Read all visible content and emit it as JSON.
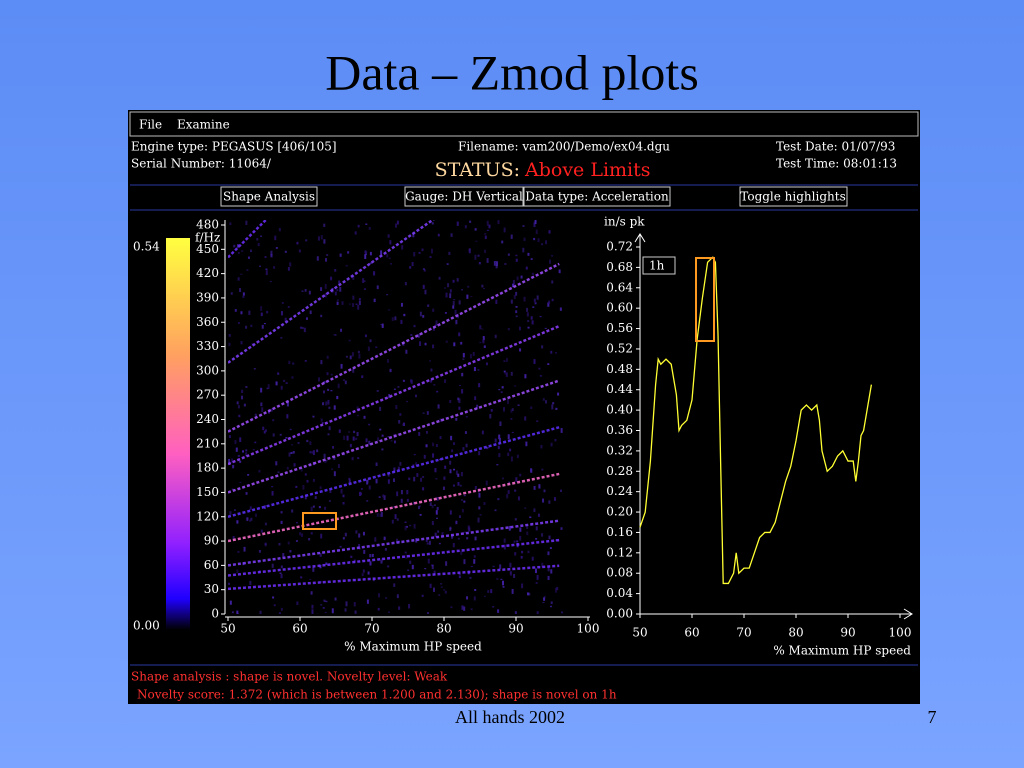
{
  "slide": {
    "title": "Data – Zmod plots",
    "footer": "All hands 2002",
    "page_number": "7"
  },
  "app": {
    "menu": [
      "File",
      "Examine"
    ],
    "header": {
      "engine_type": "Engine type: PEGASUS [406/105]",
      "serial_number": "Serial Number: 11064/",
      "filename": "Filename: vam200/Demo/ex04.dgu",
      "status_label": "STATUS:",
      "status": "Above Limits",
      "test_date": "Test Date: 01/07/93",
      "test_time": "Test Time: 08:01:13"
    },
    "buttons": [
      "Shape Analysis",
      "Gauge: DH Vertical",
      "Data type: Acceleration",
      "Toggle highlights"
    ],
    "zmod": {
      "ylabel": "f/Hz",
      "xlabel": "% Maximum HP speed",
      "xlim": [
        50,
        100
      ],
      "xticks": [
        50,
        60,
        70,
        80,
        90,
        100
      ],
      "ylim": [
        0,
        480
      ],
      "yticks": [
        0,
        30,
        60,
        90,
        120,
        150,
        180,
        210,
        240,
        270,
        300,
        330,
        360,
        390,
        420,
        450,
        480
      ],
      "colorbar_max": "0.54",
      "colorbar_min": "0.00"
    },
    "spectrum": {
      "type": "line",
      "ylabel": "in/s pk",
      "xlabel": "% Maximum HP speed",
      "legend": "1h",
      "color": "#ffff33",
      "xlim": [
        50,
        100
      ],
      "xticks": [
        50,
        60,
        70,
        80,
        90,
        100
      ],
      "ylim": [
        0,
        0.72
      ],
      "yticks": [
        {
          "value": 0,
          "label": "0.00"
        },
        0.04,
        0.08,
        0.12,
        0.16,
        {
          "value": 0.2,
          "label": "0.20"
        },
        0.24,
        0.28,
        0.32,
        0.36,
        {
          "value": 0.4,
          "label": "0.40"
        },
        0.44,
        0.48,
        0.52,
        0.56,
        {
          "value": 0.6,
          "label": "0.60"
        },
        0.64,
        0.68,
        0.72
      ],
      "x": [
        50,
        51,
        52,
        53,
        53.5,
        54,
        55,
        56,
        57,
        57.5,
        58,
        59,
        60,
        61,
        62,
        63,
        64,
        64.5,
        65,
        65.5,
        66,
        67,
        68,
        68.5,
        69,
        70,
        71,
        72,
        73,
        74,
        75,
        76,
        77,
        78,
        79,
        80,
        81,
        82,
        83,
        84,
        84.5,
        85,
        86,
        87,
        88,
        89,
        90,
        91,
        91.5,
        92,
        92.5,
        93,
        94,
        94.5
      ],
      "values": [
        0.17,
        0.2,
        0.3,
        0.45,
        0.5,
        0.49,
        0.5,
        0.49,
        0.43,
        0.36,
        0.37,
        0.38,
        0.42,
        0.54,
        0.62,
        0.69,
        0.7,
        0.69,
        0.55,
        0.3,
        0.06,
        0.06,
        0.08,
        0.12,
        0.08,
        0.09,
        0.09,
        0.12,
        0.15,
        0.16,
        0.16,
        0.18,
        0.22,
        0.26,
        0.29,
        0.34,
        0.4,
        0.41,
        0.4,
        0.41,
        0.38,
        0.32,
        0.28,
        0.29,
        0.31,
        0.32,
        0.3,
        0.3,
        0.26,
        0.3,
        0.35,
        0.36,
        0.42,
        0.45
      ]
    },
    "messages": [
      "Shape analysis : shape is novel.  Novelty level: Weak",
      "Novelty score: 1.372  (which is between 1.200 and 2.130);  shape is novel on 1h"
    ]
  }
}
